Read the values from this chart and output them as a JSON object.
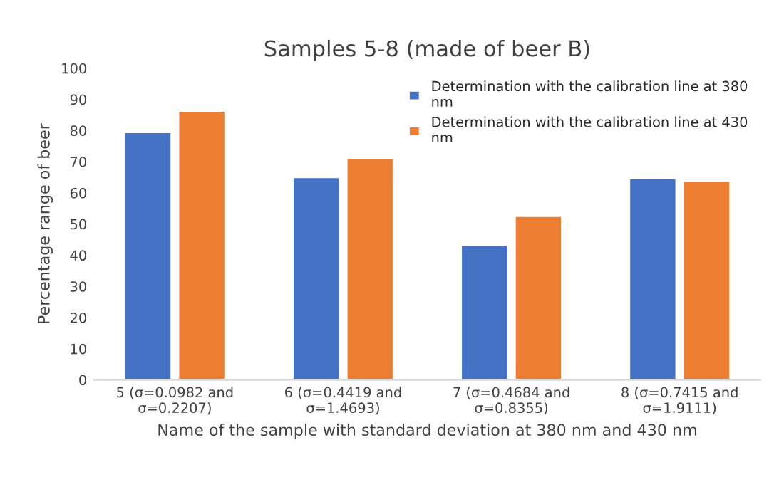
{
  "chart_data": {
    "type": "bar",
    "title": "Samples 5-8 (made of beer B)",
    "xlabel": "Name of the sample with standard deviation at 380 nm and 430 nm",
    "ylabel": "Percentage range of beer",
    "categories": [
      "5 (σ=0.0982 and\nσ=0.2207)",
      "6 (σ=0.4419 and\nσ=1.4693)",
      "7 (σ=0.4684 and\nσ=0.8355)",
      "8 (σ=0.7415 and\nσ=1.9111)"
    ],
    "series": [
      {
        "name": "Determination with the calibration line at 380\nnm",
        "color": "#4472c4",
        "values": [
          79.5,
          65,
          43.4,
          64.6
        ]
      },
      {
        "name": "Determination with the calibration line at 430\nnm",
        "color": "#ed7d31",
        "values": [
          86.3,
          71,
          52.6,
          63.9
        ]
      }
    ],
    "ylim": [
      0,
      100
    ],
    "yticks": [
      0,
      10,
      20,
      30,
      40,
      50,
      60,
      70,
      80,
      90,
      100
    ],
    "grid": false,
    "legend": "top right"
  }
}
